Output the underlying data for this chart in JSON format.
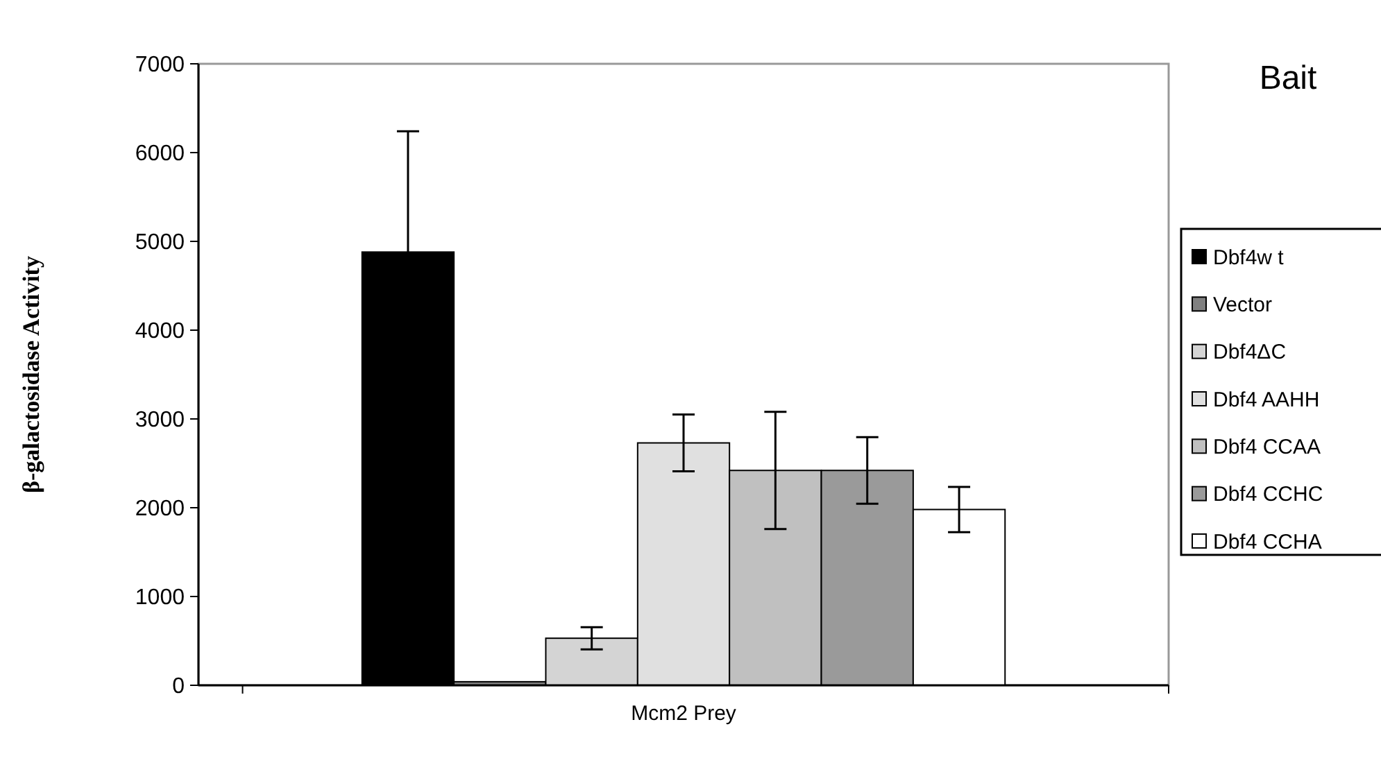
{
  "chart_data": {
    "type": "bar",
    "ylabel": "β-galactosidase Activity",
    "legend_title": "Bait",
    "categories": [
      "Mcm2 Prey"
    ],
    "series": [
      {
        "name": "Dbf4w t",
        "color": "#000000",
        "values": [
          4880
        ],
        "errors": [
          1360
        ]
      },
      {
        "name": "Vector",
        "color": "#808080",
        "values": [
          40
        ]
      },
      {
        "name": "Dbf4ΔC",
        "color": "#d4d4d4",
        "values": [
          530
        ],
        "errors": [
          125
        ]
      },
      {
        "name": "Dbf4 AAHH",
        "color": "#e0e0e0",
        "values": [
          2730
        ],
        "errors": [
          320
        ]
      },
      {
        "name": "Dbf4 CCAA",
        "color": "#c0c0c0",
        "values": [
          2420
        ],
        "errors": [
          660
        ]
      },
      {
        "name": "Dbf4 CCHC",
        "color": "#9a9a9a",
        "values": [
          2420
        ],
        "errors": [
          375
        ]
      },
      {
        "name": "Dbf4 CCHA",
        "color": "#ffffff",
        "values": [
          1980
        ],
        "errors": [
          255
        ]
      }
    ],
    "ylim": [
      0,
      7000
    ],
    "yticks": [
      0,
      1000,
      2000,
      3000,
      4000,
      5000,
      6000,
      7000
    ],
    "grid": false,
    "legend": "right"
  }
}
